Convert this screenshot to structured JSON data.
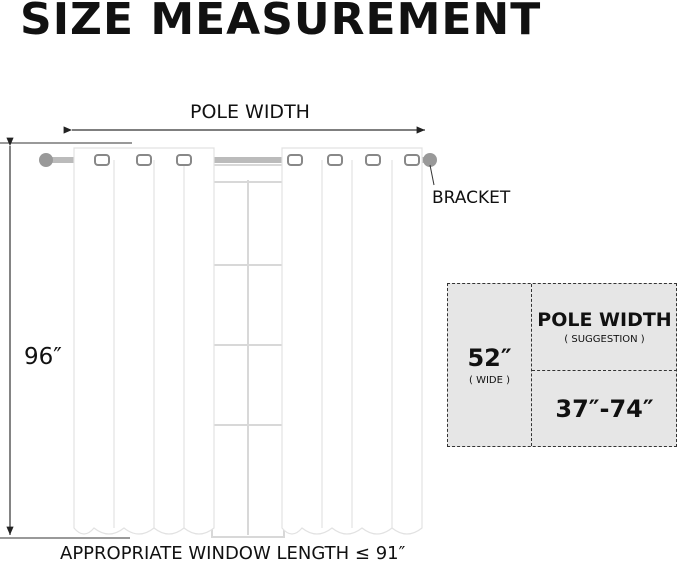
{
  "title": "SIZE MEASUREMENT",
  "pole_width_label": "POLE WIDTH",
  "bracket_label": "BRACKET",
  "height_label": "96″",
  "window_length_label": "APPROPRIATE WINDOW LENGTH ≤ 91″",
  "spec": {
    "width_value": "52″",
    "width_note": "( WIDE )",
    "pole_title": "POLE WIDTH",
    "pole_note": "( SUGGESTION )",
    "pole_range": "37″-74″"
  },
  "colors": {
    "curtain": "#ffffff",
    "curtain_edge": "#e2e2e2",
    "box": "#e6e6e6",
    "text": "#111111"
  }
}
